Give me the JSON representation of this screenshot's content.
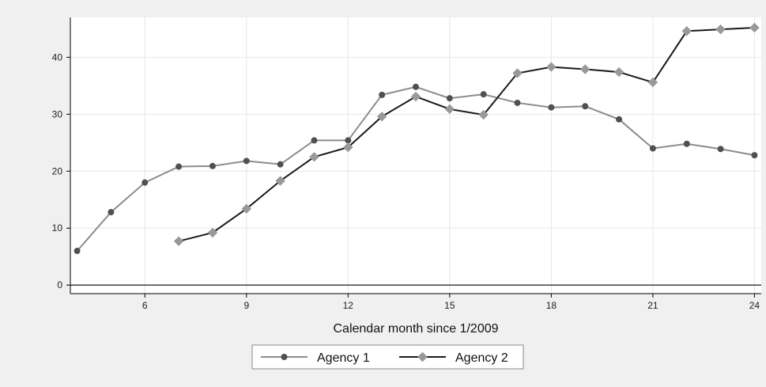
{
  "chart_data": {
    "type": "line",
    "title": "",
    "xlabel": "Calendar month since 1/2009",
    "ylabel": "",
    "xlim": [
      3.8,
      24.2
    ],
    "ylim": [
      -1.5,
      47
    ],
    "x_ticks": [
      6,
      9,
      12,
      15,
      18,
      21,
      24
    ],
    "y_ticks": [
      0,
      10,
      20,
      30,
      40
    ],
    "grid": true,
    "legend_position": "bottom",
    "series": [
      {
        "name": "Agency 1",
        "color": "#8c8c8c",
        "marker": "circle",
        "x": [
          4,
          5,
          6,
          7,
          8,
          9,
          10,
          11,
          12,
          13,
          14,
          15,
          16,
          17,
          18,
          19,
          20,
          21,
          22,
          23,
          24
        ],
        "y": [
          6.0,
          12.8,
          18.0,
          20.8,
          20.9,
          21.8,
          21.2,
          25.4,
          25.4,
          33.4,
          34.8,
          32.8,
          33.5,
          32.0,
          31.2,
          31.4,
          29.1,
          24.0,
          24.8,
          23.9,
          22.8
        ]
      },
      {
        "name": "Agency 2",
        "color": "#1a1a1a",
        "marker": "diamond",
        "x": [
          7,
          8,
          9,
          10,
          11,
          12,
          13,
          14,
          15,
          16,
          17,
          18,
          19,
          20,
          21,
          22,
          23,
          24
        ],
        "y": [
          7.7,
          9.2,
          13.4,
          18.3,
          22.5,
          24.2,
          29.6,
          33.1,
          30.9,
          29.9,
          37.2,
          38.3,
          37.9,
          37.4,
          35.6,
          44.6,
          44.9,
          45.2
        ]
      }
    ]
  }
}
